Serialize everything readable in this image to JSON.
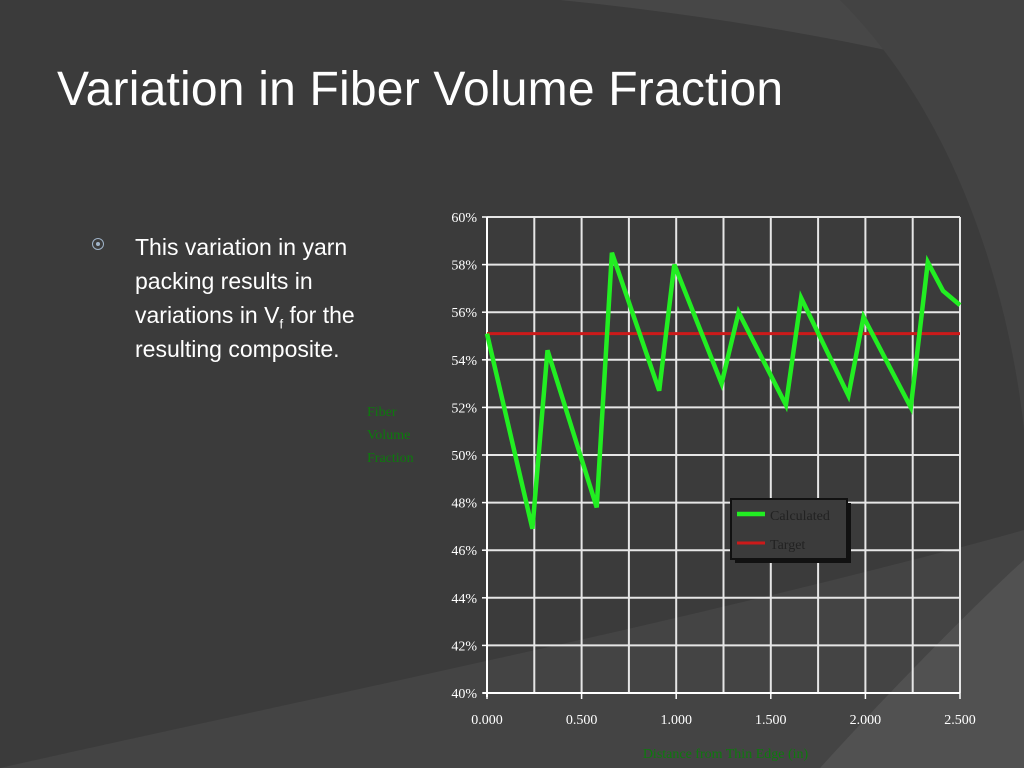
{
  "slide": {
    "title": "Variation in Fiber Volume Fraction",
    "bullet": {
      "pre": "This variation in yarn packing results in variations in V",
      "sub": "f",
      "post": " for the resulting composite."
    }
  },
  "colors": {
    "background": "#3b3b3b",
    "calculated": "#22ee22",
    "target": "#cc1a1a",
    "axis_label": "#0d7a0d"
  },
  "chart_data": {
    "type": "line",
    "title": "",
    "ylabel_lines": [
      "Fiber",
      "Volume",
      "Fraction"
    ],
    "xlabel": "Distance from Thin Edge (in)",
    "xlim": [
      0,
      2.5
    ],
    "ylim": [
      0.4,
      0.6
    ],
    "x_tick_labels": [
      "0.000",
      "0.500",
      "1.000",
      "1.500",
      "2.000",
      "2.500"
    ],
    "x_ticks": [
      0,
      0.5,
      1.0,
      1.5,
      2.0,
      2.5
    ],
    "y_tick_labels": [
      "60%",
      "58%",
      "56%",
      "54%",
      "52%",
      "50%",
      "48%",
      "46%",
      "44%",
      "42%",
      "40%"
    ],
    "y_ticks": [
      0.6,
      0.58,
      0.56,
      0.54,
      0.52,
      0.5,
      0.48,
      0.46,
      0.44,
      0.42,
      0.4
    ],
    "x_minor_gridlines": [
      0.25,
      0.75,
      1.25,
      1.75,
      2.25
    ],
    "grid": true,
    "legend_position": "bottom-right",
    "series": [
      {
        "name": "Calculated",
        "x": [
          0.0,
          0.24,
          0.32,
          0.58,
          0.66,
          0.91,
          0.99,
          1.24,
          1.33,
          1.58,
          1.66,
          1.91,
          1.99,
          2.24,
          2.33,
          2.41,
          2.5
        ],
        "y": [
          0.551,
          0.469,
          0.544,
          0.478,
          0.585,
          0.527,
          0.58,
          0.53,
          0.56,
          0.521,
          0.566,
          0.525,
          0.558,
          0.52,
          0.581,
          0.569,
          0.563
        ]
      },
      {
        "name": "Target",
        "x": [
          0.0,
          2.5
        ],
        "y": [
          0.551,
          0.551
        ]
      }
    ]
  }
}
